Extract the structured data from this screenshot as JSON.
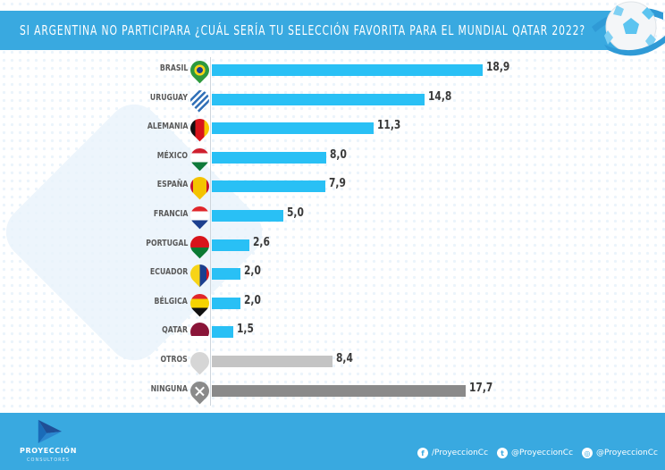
{
  "header": {
    "title": "SI ARGENTINA NO PARTICIPARA ¿CUÁL SERÍA TU SELECCIÓN FAVORITA PARA EL MUNDIAL QATAR 2022?"
  },
  "chart_data": {
    "type": "bar",
    "orientation": "horizontal",
    "title": "SI ARGENTINA NO PARTICIPARA ¿CUÁL SERÍA TU SELECCIÓN FAVORITA PARA EL MUNDIAL QATAR 2022?",
    "xlabel": "",
    "ylabel": "",
    "xlim": [
      0,
      20
    ],
    "grid": false,
    "categories": [
      "BRASIL",
      "URUGUAY",
      "ALEMANIA",
      "MÉXICO",
      "ESPAÑA",
      "FRANCIA",
      "PORTUGAL",
      "ECUADOR",
      "BÉLGICA",
      "QATAR",
      "OTROS",
      "NINGUNA"
    ],
    "values": [
      18.9,
      14.8,
      11.3,
      8.0,
      7.9,
      5.0,
      2.6,
      2.0,
      2.0,
      1.5,
      8.4,
      17.7
    ],
    "value_labels": [
      "18,9",
      "14,8",
      "11,3",
      "8,0",
      "7,9",
      "5,0",
      "2,6",
      "2,0",
      "2,0",
      "1,5",
      "8,4",
      "17,7"
    ],
    "bar_colors": [
      "#29c0f5",
      "#29c0f5",
      "#29c0f5",
      "#29c0f5",
      "#29c0f5",
      "#29c0f5",
      "#29c0f5",
      "#29c0f5",
      "#29c0f5",
      "#29c0f5",
      "#c4c4c4",
      "#8a8a8a"
    ],
    "flag_icons": [
      "brazil-flag-icon",
      "uruguay-flag-icon",
      "germany-flag-icon",
      "mexico-flag-icon",
      "spain-flag-icon",
      "france-flag-icon",
      "portugal-flag-icon",
      "ecuador-flag-icon",
      "belgium-flag-icon",
      "qatar-flag-icon",
      "others-blank-icon",
      "none-x-icon"
    ]
  },
  "footer": {
    "brand": "PROYECCIÓN",
    "brand_sub": "CONSULTORES",
    "social": [
      {
        "icon": "facebook-icon",
        "glyph": "f",
        "label": "/ProyeccionCc"
      },
      {
        "icon": "twitter-icon",
        "glyph": "t",
        "label": "@ProyeccionCc"
      },
      {
        "icon": "instagram-icon",
        "glyph": "◎",
        "label": "@ProyeccionCc"
      }
    ]
  },
  "colors": {
    "accent": "#39a9e0",
    "bar_primary": "#29c0f5",
    "bar_others": "#c4c4c4",
    "bar_none": "#8a8a8a"
  }
}
